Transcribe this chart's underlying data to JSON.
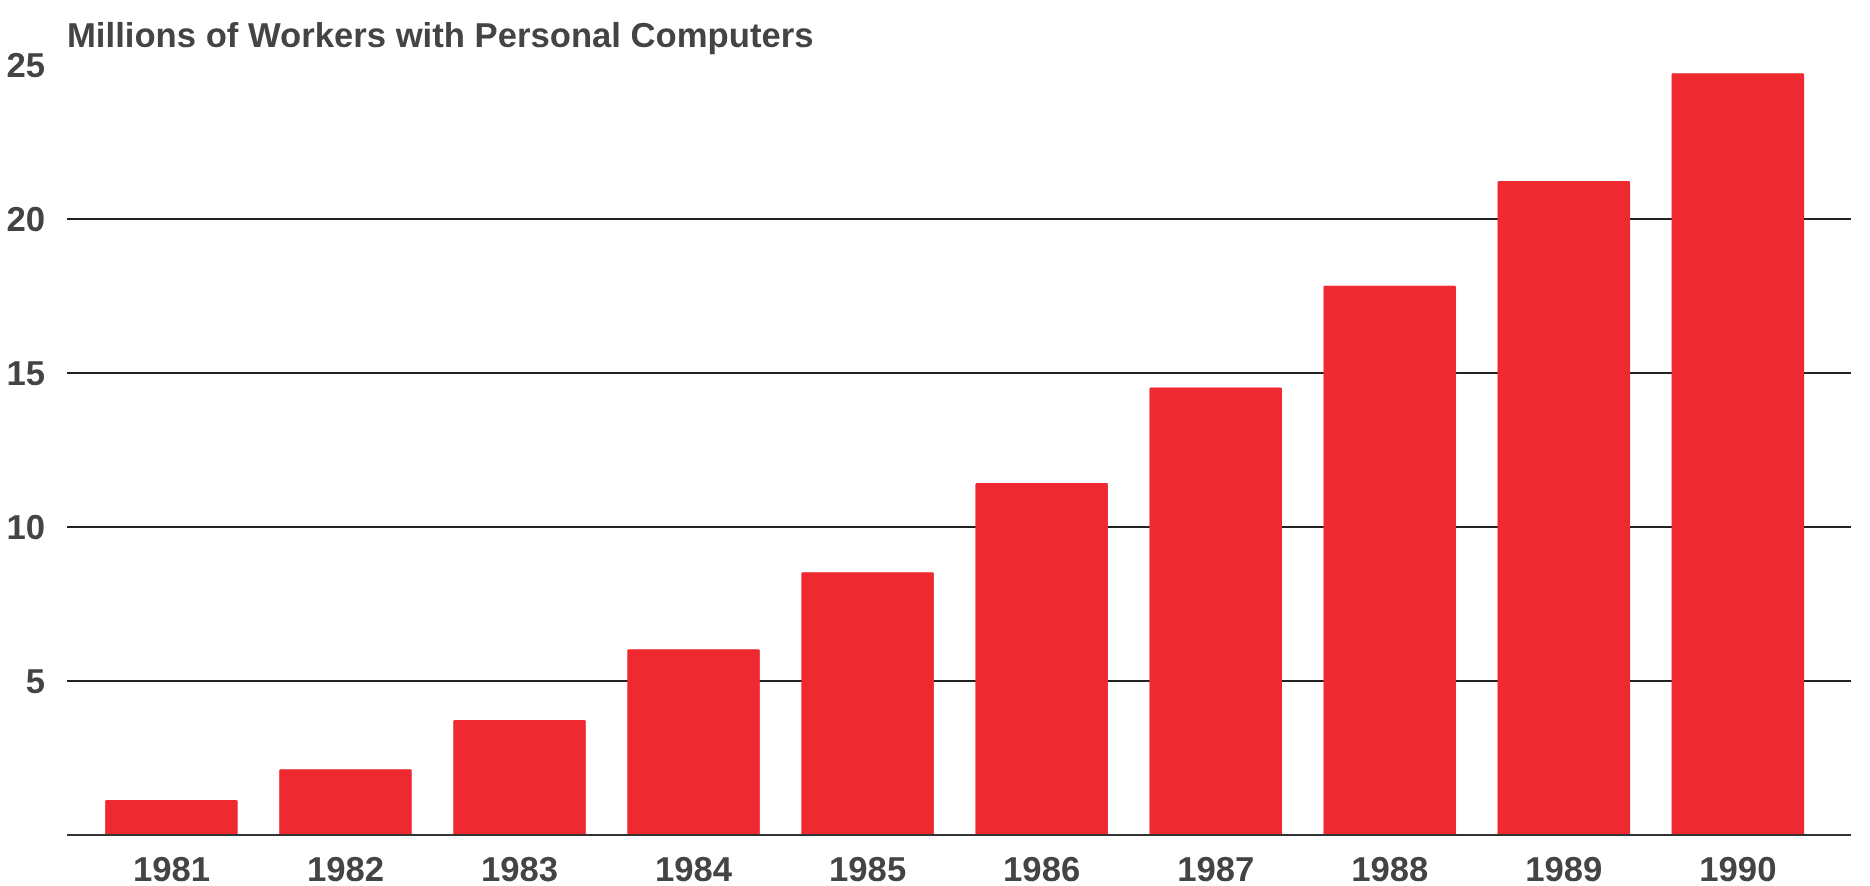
{
  "chart_data": {
    "type": "bar",
    "title": "Millions of Workers with Personal Computers",
    "categories": [
      "1981",
      "1982",
      "1983",
      "1984",
      "1985",
      "1986",
      "1987",
      "1988",
      "1989",
      "1990"
    ],
    "values": [
      1.1,
      2.1,
      3.7,
      6.0,
      8.5,
      11.4,
      14.5,
      17.8,
      21.2,
      24.7
    ],
    "color": "#ee2a30",
    "ylim": [
      0,
      25
    ],
    "yticks": [
      {
        "value": 0,
        "label": null
      },
      5,
      10,
      15,
      20,
      25
    ],
    "grid": "y"
  }
}
